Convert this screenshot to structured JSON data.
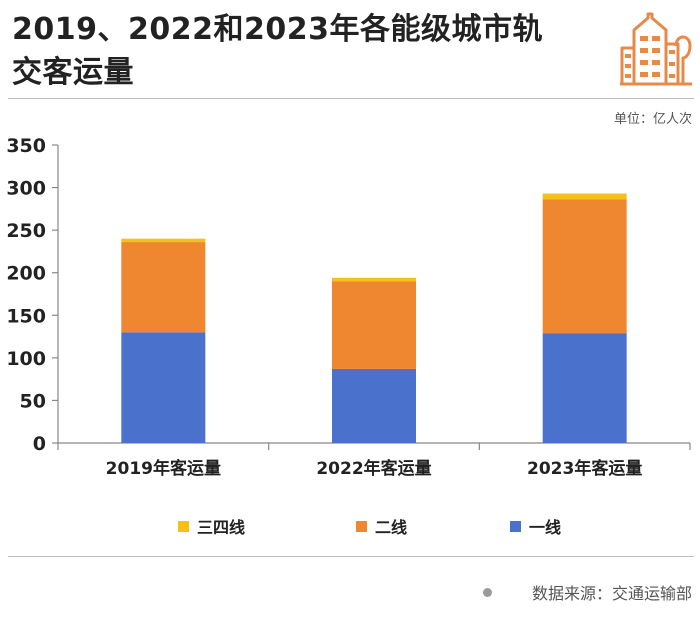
{
  "header": {
    "title": "2019、2022和2023年各能级城市轨交客运量",
    "logo_icon": "building-icon"
  },
  "unit_label": "单位：亿人次",
  "colors": {
    "tier1": "#4a72cc",
    "tier2": "#ef8630",
    "tier3": "#f5c114",
    "logo": "#e8894a",
    "axis": "#888888"
  },
  "chart_data": {
    "type": "bar",
    "stacked": true,
    "categories": [
      "2019年客运量",
      "2022年客运量",
      "2023年客运量"
    ],
    "series": [
      {
        "name": "一线",
        "color": "#4a72cc",
        "values": [
          130,
          87,
          129
        ]
      },
      {
        "name": "二线",
        "color": "#ef8630",
        "values": [
          106,
          103,
          157
        ]
      },
      {
        "name": "三四线",
        "color": "#f5c114",
        "values": [
          4,
          4,
          7
        ]
      }
    ],
    "ylim": [
      0,
      350
    ],
    "yticks": [
      "0",
      "50",
      "100",
      "150",
      "200",
      "250",
      "300",
      "350"
    ],
    "ylabel": "",
    "xlabel": "",
    "grid": false,
    "legend_position": "bottom"
  },
  "legend": [
    {
      "label": "三四线",
      "color": "#f5c114"
    },
    {
      "label": "二线",
      "color": "#ef8630"
    },
    {
      "label": "一线",
      "color": "#4a72cc"
    }
  ],
  "footer": {
    "source": "数据来源：交通运输部"
  }
}
